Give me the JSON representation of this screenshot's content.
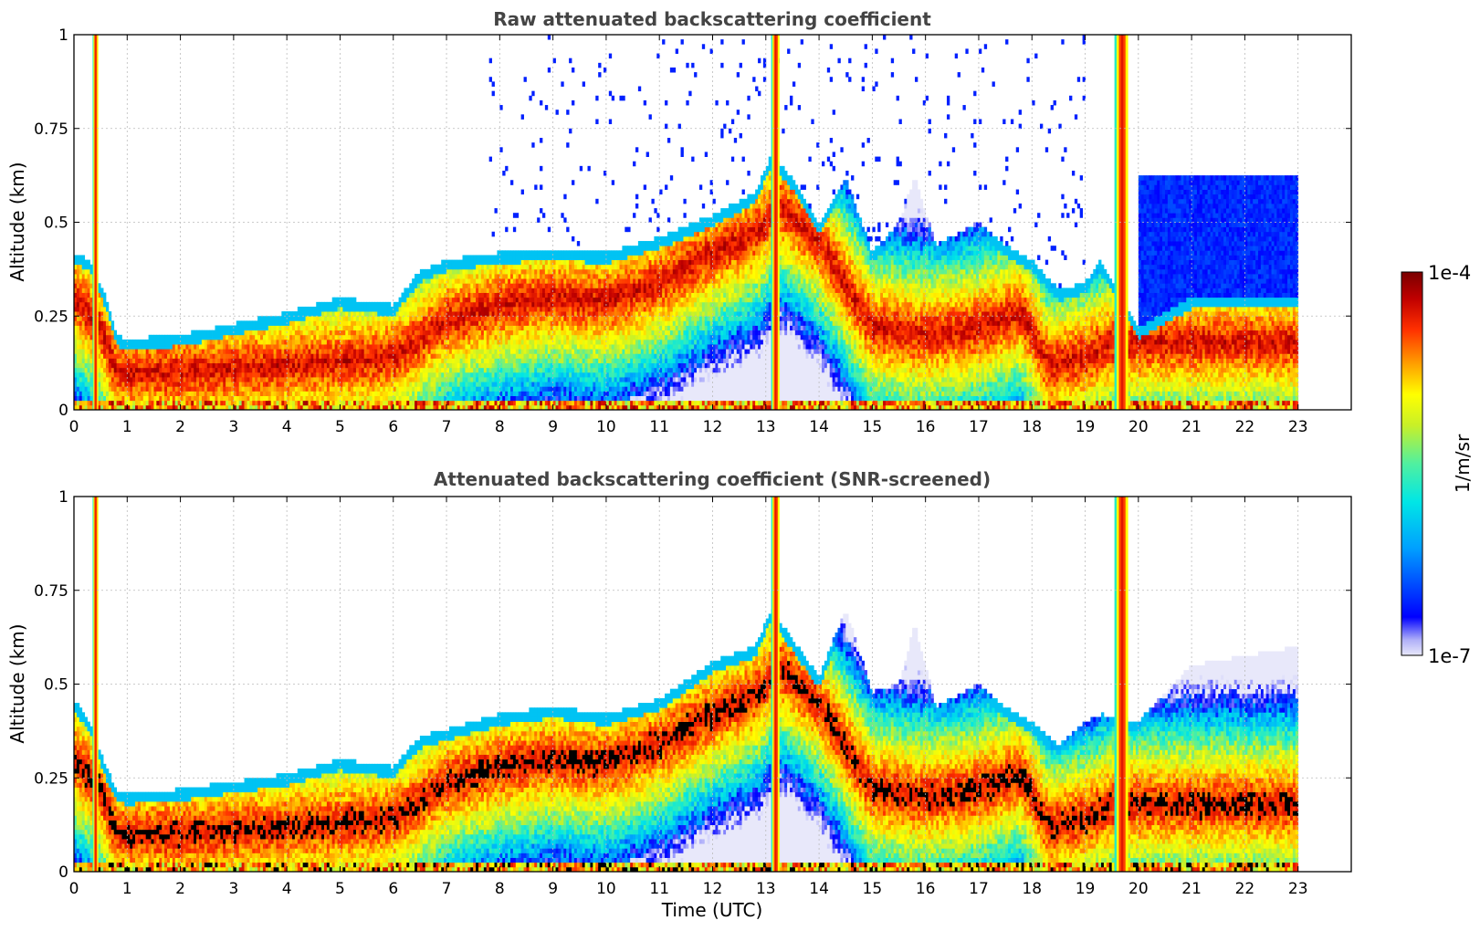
{
  "chart_data": [
    {
      "type": "heatmap",
      "title": "Raw attenuated backscattering coefficient",
      "xlabel": "",
      "ylabel": "Altitude (km)",
      "xlim": [
        0,
        24
      ],
      "ylim": [
        0,
        1
      ],
      "xticks": [
        "0",
        "1",
        "2",
        "3",
        "4",
        "5",
        "6",
        "7",
        "8",
        "9",
        "10",
        "11",
        "12",
        "13",
        "14",
        "15",
        "16",
        "17",
        "18",
        "19",
        "20",
        "21",
        "22",
        "23"
      ],
      "yticks": [
        "0",
        "0.25",
        "0.5",
        "0.75",
        "1"
      ],
      "grid": true,
      "data_end_hour": 23,
      "screened": false,
      "layer_top_km": [
        [
          0,
          0.42
        ],
        [
          0.3,
          0.4
        ],
        [
          0.6,
          0.3
        ],
        [
          0.8,
          0.2
        ],
        [
          1,
          0.19
        ],
        [
          2,
          0.2
        ],
        [
          3,
          0.23
        ],
        [
          4,
          0.26
        ],
        [
          5,
          0.3
        ],
        [
          6,
          0.28
        ],
        [
          6.5,
          0.37
        ],
        [
          7,
          0.4
        ],
        [
          8,
          0.42
        ],
        [
          9,
          0.43
        ],
        [
          10,
          0.42
        ],
        [
          11,
          0.46
        ],
        [
          12,
          0.52
        ],
        [
          12.8,
          0.58
        ],
        [
          13.1,
          0.68
        ],
        [
          13.5,
          0.62
        ],
        [
          14,
          0.5
        ],
        [
          14.5,
          0.62
        ],
        [
          15,
          0.42
        ],
        [
          15.5,
          0.5
        ],
        [
          15.8,
          0.62
        ],
        [
          16.2,
          0.44
        ],
        [
          17,
          0.5
        ],
        [
          17.5,
          0.44
        ],
        [
          18,
          0.4
        ],
        [
          18.5,
          0.32
        ],
        [
          19,
          0.34
        ],
        [
          19.3,
          0.4
        ],
        [
          20,
          0.22
        ],
        [
          21,
          0.3
        ],
        [
          23,
          0.3
        ]
      ],
      "dense_layer_km": [
        [
          0,
          0.3
        ],
        [
          0.5,
          0.22
        ],
        [
          0.8,
          0.1
        ],
        [
          2,
          0.1
        ],
        [
          3,
          0.11
        ],
        [
          4,
          0.12
        ],
        [
          5,
          0.13
        ],
        [
          6,
          0.14
        ],
        [
          6.6,
          0.2
        ],
        [
          7,
          0.24
        ],
        [
          8,
          0.28
        ],
        [
          9,
          0.3
        ],
        [
          10,
          0.29
        ],
        [
          11,
          0.34
        ],
        [
          12,
          0.42
        ],
        [
          12.9,
          0.48
        ],
        [
          13.2,
          0.55
        ],
        [
          14,
          0.45
        ],
        [
          15,
          0.22
        ],
        [
          16,
          0.2
        ],
        [
          17,
          0.22
        ],
        [
          17.8,
          0.26
        ],
        [
          18.3,
          0.12
        ],
        [
          19,
          0.14
        ],
        [
          19.5,
          0.18
        ]
      ]
    },
    {
      "type": "heatmap",
      "title": "Attenuated backscattering coefficient (SNR-screened)",
      "xlabel": "Time (UTC)",
      "ylabel": "Altitude (km)",
      "xlim": [
        0,
        24
      ],
      "ylim": [
        0,
        1
      ],
      "xticks": [
        "0",
        "1",
        "2",
        "3",
        "4",
        "5",
        "6",
        "7",
        "8",
        "9",
        "10",
        "11",
        "12",
        "13",
        "14",
        "15",
        "16",
        "17",
        "18",
        "19",
        "20",
        "21",
        "22",
        "23"
      ],
      "yticks": [
        "0",
        "0.25",
        "0.5",
        "0.75",
        "1"
      ],
      "grid": true,
      "data_end_hour": 23,
      "screened": true,
      "layer_top_km": [
        [
          0,
          0.46
        ],
        [
          0.3,
          0.4
        ],
        [
          0.6,
          0.28
        ],
        [
          0.8,
          0.22
        ],
        [
          1,
          0.21
        ],
        [
          2,
          0.22
        ],
        [
          3,
          0.24
        ],
        [
          4,
          0.26
        ],
        [
          5,
          0.3
        ],
        [
          6,
          0.28
        ],
        [
          6.5,
          0.36
        ],
        [
          7,
          0.38
        ],
        [
          8,
          0.42
        ],
        [
          9,
          0.44
        ],
        [
          10,
          0.42
        ],
        [
          11,
          0.46
        ],
        [
          12,
          0.56
        ],
        [
          12.8,
          0.6
        ],
        [
          13.1,
          0.7
        ],
        [
          13.5,
          0.62
        ],
        [
          14,
          0.52
        ],
        [
          14.5,
          0.7
        ],
        [
          15,
          0.48
        ],
        [
          15.5,
          0.5
        ],
        [
          15.8,
          0.66
        ],
        [
          16.2,
          0.44
        ],
        [
          17,
          0.5
        ],
        [
          17.5,
          0.44
        ],
        [
          18,
          0.4
        ],
        [
          18.5,
          0.34
        ],
        [
          19,
          0.4
        ],
        [
          19.3,
          0.42
        ],
        [
          20,
          0.4
        ],
        [
          21,
          0.55
        ],
        [
          23,
          0.6
        ]
      ],
      "dense_layer_km": [
        [
          0,
          0.3
        ],
        [
          0.5,
          0.22
        ],
        [
          0.8,
          0.1
        ],
        [
          2,
          0.1
        ],
        [
          3,
          0.11
        ],
        [
          4,
          0.12
        ],
        [
          5,
          0.13
        ],
        [
          6,
          0.14
        ],
        [
          6.6,
          0.2
        ],
        [
          7,
          0.24
        ],
        [
          8,
          0.28
        ],
        [
          9,
          0.3
        ],
        [
          10,
          0.29
        ],
        [
          11,
          0.34
        ],
        [
          12,
          0.42
        ],
        [
          12.9,
          0.48
        ],
        [
          13.2,
          0.55
        ],
        [
          14,
          0.45
        ],
        [
          15,
          0.22
        ],
        [
          16,
          0.2
        ],
        [
          17,
          0.22
        ],
        [
          17.8,
          0.26
        ],
        [
          18.3,
          0.12
        ],
        [
          19,
          0.14
        ],
        [
          19.5,
          0.18
        ]
      ]
    }
  ],
  "colorbar": {
    "label": "1/m/sr",
    "max_label": "1e-4",
    "min_label": "1e-7",
    "scale": "log",
    "colormap": [
      "#e8e8fa",
      "#0000ff",
      "#00a0ff",
      "#00e6e6",
      "#50f0a0",
      "#c8f028",
      "#ffff00",
      "#ffa000",
      "#ff3000",
      "#c00000",
      "#7a0000"
    ]
  }
}
